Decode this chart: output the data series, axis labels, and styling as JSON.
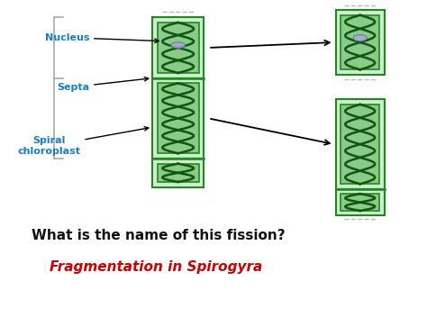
{
  "bg_color": "#ffffff",
  "title_question": "What is the name of this fission?",
  "title_answer": "Fragmentation in Spirogyra",
  "question_color": "#111111",
  "answer_color": "#cc0000",
  "label_nucleus": "Nucleus",
  "label_septa": "Septa",
  "label_chloroplast": "Spiral\nchloroplast",
  "label_color": "#1a7fbf",
  "cell_outer_color": "#228822",
  "cell_inner_light": "#cceecc",
  "cell_inner_green": "#88cc88",
  "cell_fill": "#aaddaa",
  "spiral_dark": "#115511",
  "spiral_mid": "#22aa22",
  "spiral_light": "#aaddaa",
  "nucleus_color": "#aaaacc",
  "septa_color": "#228822",
  "arrow_color": "#111111"
}
